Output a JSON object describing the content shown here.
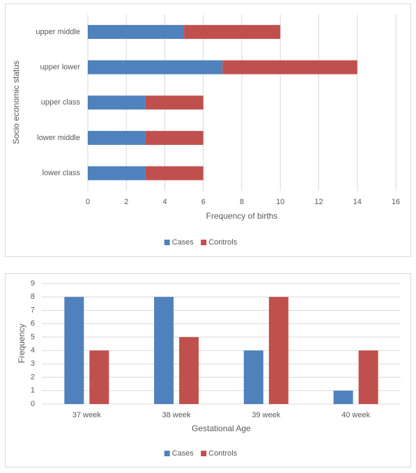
{
  "chart_data": [
    {
      "type": "stacked-barh",
      "xlabel": "Frequency of births",
      "ylabel": "Socio economic status",
      "categories": [
        "upper middle",
        "upper lower",
        "upper class",
        "lower middle",
        "lower class"
      ],
      "series": [
        {
          "name": "Cases",
          "color": "#4f81bd",
          "values": [
            5,
            7,
            3,
            3,
            3
          ]
        },
        {
          "name": "Controls",
          "color": "#c0504d",
          "values": [
            5,
            7,
            3,
            3,
            3
          ]
        }
      ],
      "xlim": [
        0,
        16
      ],
      "xticks": [
        0,
        2,
        4,
        6,
        8,
        10,
        12,
        14,
        16
      ],
      "grid": true,
      "legend": "bottom"
    },
    {
      "type": "bar",
      "xlabel": "Gestational Age",
      "ylabel": "Frequency",
      "categories": [
        "37 week",
        "38 week",
        "39 week",
        "40 week"
      ],
      "series": [
        {
          "name": "Cases",
          "color": "#4f81bd",
          "values": [
            8,
            8,
            4,
            1
          ]
        },
        {
          "name": "Controls",
          "color": "#c0504d",
          "values": [
            4,
            5,
            8,
            4
          ]
        }
      ],
      "ylim": [
        0,
        9
      ],
      "yticks": [
        0,
        1,
        2,
        3,
        4,
        5,
        6,
        7,
        8,
        9
      ],
      "grid": true,
      "legend": "bottom"
    }
  ]
}
